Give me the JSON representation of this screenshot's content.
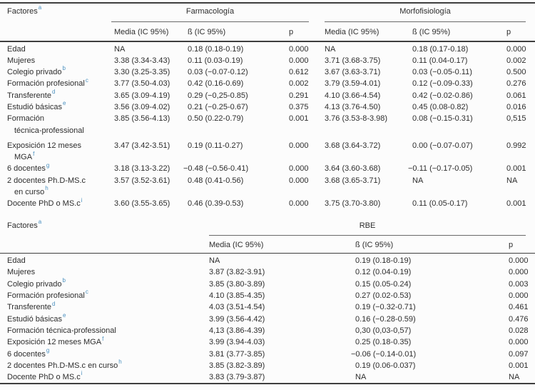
{
  "colors": {
    "superscript": "#4a90bf",
    "text": "#2d2d2d",
    "rule": "#3f3f3f",
    "background": "#fcfcfc"
  },
  "table_1": {
    "factores_label": "Factores",
    "factores_sup": "a",
    "groups": [
      {
        "label": "Farmacología"
      },
      {
        "label": "Morfofisiología"
      }
    ],
    "columns": [
      "Media (IC 95%)",
      "ß (IC 95%)",
      "p",
      "Media (IC 95%)",
      "ß (IC 95%)",
      "p"
    ],
    "rows": [
      {
        "label": "Edad",
        "cells": [
          "NA",
          "0.18 (0.18-0.19)",
          "0.000",
          "NA",
          "0.18 (0.17-0.18)",
          "0.000"
        ]
      },
      {
        "label": "Mujeres",
        "cells": [
          "3.38 (3.34-3.43)",
          "0.11 (0.03-0.19)",
          "0.000",
          "3.71 (3.68-3.75)",
          "0.11 (0.04-0.17)",
          "0.002"
        ]
      },
      {
        "label": "Colegio privado",
        "sup": "b",
        "cells": [
          "3.30 (3.25-3.35)",
          "0.03 (−0.07-0.12)",
          "0.612",
          "3.67 (3.63-3.71)",
          "0.03 (−0.05-0.11)",
          "0.500"
        ]
      },
      {
        "label": "Formación profesional",
        "sup": "c",
        "cells": [
          "3.77 (3.50-4.03)",
          "0.42 (0.16-0.69)",
          "0.002",
          "3.79 (3.59-4.01)",
          "0.12 (−0.09-0.33)",
          "0.276"
        ]
      },
      {
        "label": "Transferente",
        "sup": "d",
        "cells": [
          "3.65 (3.09-4.19)",
          "0.29 (−0,25-0.85)",
          "0.291",
          "4.10 (3.66-4.54)",
          "0.42 (−0.02-0.86)",
          "0.061"
        ]
      },
      {
        "label": "Estudió básicas",
        "sup": "e",
        "cells": [
          "3.56 (3.09-4.02)",
          "0.21 (−0.25-0.67)",
          "0.375",
          "4.13 (3.76-4.50)",
          "0.45 (0.08-0.82)",
          "0.016"
        ]
      },
      {
        "label": "Formación",
        "label2": "técnica-professional",
        "cells": [
          "3.85 (3.56-4.13)",
          "0.50 (0.22-0.79)",
          "0.001",
          "3.76 (3.53-8-3.98)",
          "0.08 (−0.15-0.31)",
          "0,515"
        ]
      },
      {
        "label": "Exposición 12 meses",
        "label2": "MGA",
        "sup": "f",
        "cells": [
          "3.47 (3.42-3.51)",
          "0.19 (0.11-0.27)",
          "0.000",
          "3.68 (3.64-3.72)",
          "0.00 (−0.07-0.07)",
          "0.992"
        ]
      },
      {
        "label": "6 docentes",
        "sup": "g",
        "cells": [
          "3.18 (3.13-3.22)",
          "−0.48 (−0.56-0.41)",
          "0.000",
          "3.64 (3.60-3.68)",
          "−0.11 (−0.17-0.05)",
          "0.001"
        ]
      },
      {
        "label": "2 docentes Ph.D-MS.c",
        "label2": "en curso",
        "sup": "h",
        "cells": [
          "3.57 (3.52-3.61)",
          "0.48 (0.41-0.56)",
          "0.000",
          "3.68 (3.65-3.71)",
          "NA",
          "NA"
        ]
      },
      {
        "label": "Docente PhD o MS.c",
        "sup": "i",
        "cells": [
          "3.60 (3.55-3.65)",
          "0.46 (0.39-0.53)",
          "0.000",
          "3.75 (3.70-3.80)",
          "0.11 (0.05-0.17)",
          "0.001"
        ]
      }
    ]
  },
  "table_2": {
    "factores_label": "Factores",
    "factores_sup": "a",
    "groups": [
      {
        "label": "RBE"
      }
    ],
    "columns": [
      "Media (IC 95%)",
      "ß (IC 95%)",
      "p"
    ],
    "rows": [
      {
        "label": "Edad",
        "cells": [
          "NA",
          "0.19 (0.18-0.19)",
          "0.000"
        ]
      },
      {
        "label": "Mujeres",
        "cells": [
          "3.87 (3.82-3.91)",
          "0.12 (0.04-0.19)",
          "0.000"
        ]
      },
      {
        "label": "Colegio privado",
        "sup": "b",
        "cells": [
          "3.85 (3.80-3.89)",
          "0.15 (0.05-0.24)",
          "0.003"
        ]
      },
      {
        "label": "Formación profesional",
        "sup": "c",
        "cells": [
          "4.10 (3.85-4.35)",
          "0.27 (0.02-0.53)",
          "0.000"
        ]
      },
      {
        "label": "Transferente",
        "sup": "d",
        "cells": [
          "4.03 (3.51-4.54)",
          "0.19 (−0.32-0.71)",
          "0.461"
        ]
      },
      {
        "label": "Estudió básicas",
        "sup": "e",
        "cells": [
          "3.99 (3.56-4.42)",
          "0.16 (−0.28-0.59)",
          "0.476"
        ]
      },
      {
        "label": "Formación técnica-professional",
        "cells": [
          "4,13 (3.86-4.39)",
          "0,30 (0,03-0,57)",
          "0.028"
        ]
      },
      {
        "label": "Exposición 12 meses MGA",
        "sup": "f",
        "cells": [
          "3.99 (3.94-4.03)",
          "0.25 (0.18-0.35)",
          "0.000"
        ]
      },
      {
        "label": "6 docentes",
        "sup": "g",
        "cells": [
          "3.81 (3.77-3.85)",
          "−0.06 (−0.14-0.01)",
          "0.097"
        ]
      },
      {
        "label": "2 docentes Ph.D-MS.c en curso",
        "sup": "h",
        "cells": [
          "3.85 (3.82-3.89)",
          "0.19 (0.06-0.037)",
          "0.001"
        ]
      },
      {
        "label": "Docente PhD o MS.c",
        "sup": "i",
        "cells": [
          "3.83 (3.79-3.87)",
          "NA",
          "NA"
        ]
      }
    ]
  }
}
